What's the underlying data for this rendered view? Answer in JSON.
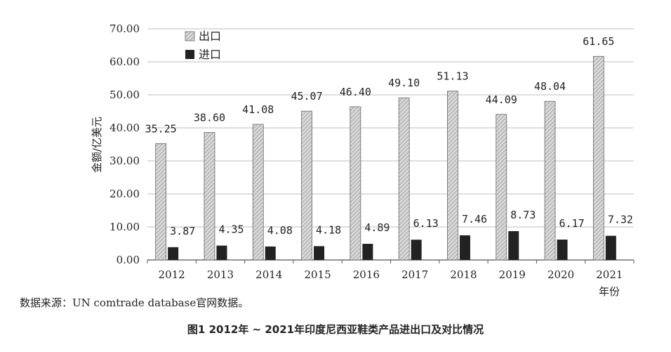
{
  "chart_data": {
    "type": "bar",
    "categories": [
      "2012",
      "2013",
      "2014",
      "2015",
      "2016",
      "2017",
      "2018",
      "2019",
      "2020",
      "2021"
    ],
    "series": [
      {
        "name": "出口",
        "values": [
          35.25,
          38.6,
          41.08,
          45.07,
          46.4,
          49.1,
          51.13,
          44.09,
          48.04,
          61.65
        ],
        "labels": [
          "35.25",
          "38.60",
          "41.08",
          "45.07",
          "46.40",
          "49.10",
          "51.13",
          "44.09",
          "48.04",
          "61.65"
        ],
        "style": "hatched-gray"
      },
      {
        "name": "进口",
        "values": [
          3.87,
          4.35,
          4.08,
          4.18,
          4.89,
          6.13,
          7.46,
          8.73,
          6.17,
          7.32
        ],
        "labels": [
          "3.87",
          "4.35",
          "4.08",
          "4.18",
          "4.89",
          "6.13",
          "7.46",
          "8.73",
          "6.17",
          "7.32"
        ],
        "style": "solid-black"
      }
    ],
    "ylabel": "金额/亿美元",
    "xlabel": "年份",
    "ylim": [
      0,
      70
    ],
    "yticks": [
      "0.00",
      "10.00",
      "20.00",
      "30.00",
      "40.00",
      "50.00",
      "60.00",
      "70.00"
    ],
    "grid": true,
    "legend_position": "top-left",
    "colors": {
      "export_fill": "#d9d9d9",
      "export_hatch": "#8c8c8c",
      "import_fill": "#222222",
      "grid": "#bfbfbf",
      "axis": "#555555"
    }
  },
  "source_note": "数据来源：UN comtrade database官网数据。",
  "figure_caption": "图1  2012年 ~ 2021年印度尼西亚鞋类产品进出口及对比情况"
}
